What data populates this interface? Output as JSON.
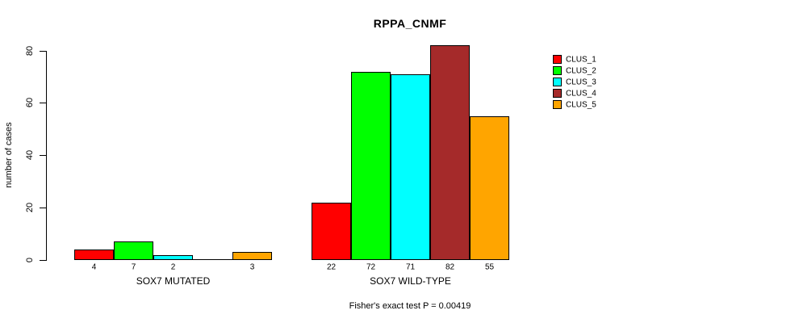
{
  "chart_data": {
    "type": "bar",
    "title": "RPPA_CNMF",
    "ylabel": "number of cases",
    "xlabel": "",
    "yticks": [
      0,
      20,
      40,
      60,
      80
    ],
    "ylim": [
      0,
      82
    ],
    "grid": false,
    "legend_position": "right",
    "categories": [
      "SOX7 MUTATED",
      "SOX7 WILD-TYPE"
    ],
    "series": [
      {
        "name": "CLUS_1",
        "color": "#FF0000",
        "values": [
          4,
          22
        ]
      },
      {
        "name": "CLUS_2",
        "color": "#00FF00",
        "values": [
          7,
          72
        ]
      },
      {
        "name": "CLUS_3",
        "color": "#00FFFF",
        "values": [
          2,
          71
        ]
      },
      {
        "name": "CLUS_4",
        "color": "#A52A2A",
        "values": [
          0,
          82
        ]
      },
      {
        "name": "CLUS_5",
        "color": "#FFA500",
        "values": [
          3,
          55
        ]
      }
    ],
    "bar_value_labels": [
      [
        "4",
        "7",
        "2",
        "",
        "3"
      ],
      [
        "22",
        "72",
        "71",
        "82",
        "55"
      ]
    ],
    "annotation": "Fisher's exact test P = 0.00419"
  }
}
